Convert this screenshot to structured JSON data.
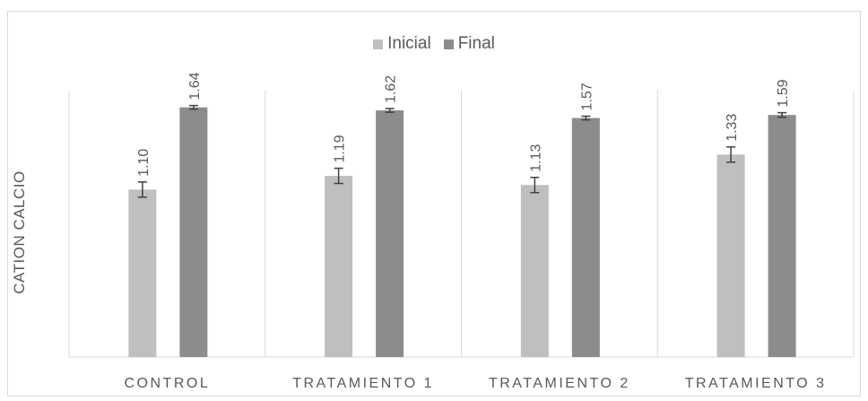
{
  "chart_data": {
    "type": "bar",
    "categories": [
      "CONTROL",
      "TRATAMIENTO 1",
      "TRATAMIENTO 2",
      "TRATAMIENTO 3"
    ],
    "series": [
      {
        "name": "Inicial",
        "values": [
          1.1,
          1.19,
          1.13,
          1.33
        ],
        "errors": [
          0.05,
          0.05,
          0.05,
          0.05
        ],
        "color": "#bfbfbf"
      },
      {
        "name": "Final",
        "values": [
          1.64,
          1.62,
          1.57,
          1.59
        ],
        "errors": [
          0.012,
          0.012,
          0.012,
          0.015
        ],
        "color": "#8c8c8c"
      }
    ],
    "data_labels": {
      "Inicial": [
        "1.10",
        "1.19",
        "1.13",
        "1.33"
      ],
      "Final": [
        "1.64",
        "1.62",
        "1.57",
        "1.59"
      ]
    },
    "title": "",
    "xlabel": "",
    "ylabel": "CATION CALCIO",
    "ylim": [
      0,
      1.75
    ],
    "legend_position": "top",
    "grid": "vertical category separators"
  }
}
